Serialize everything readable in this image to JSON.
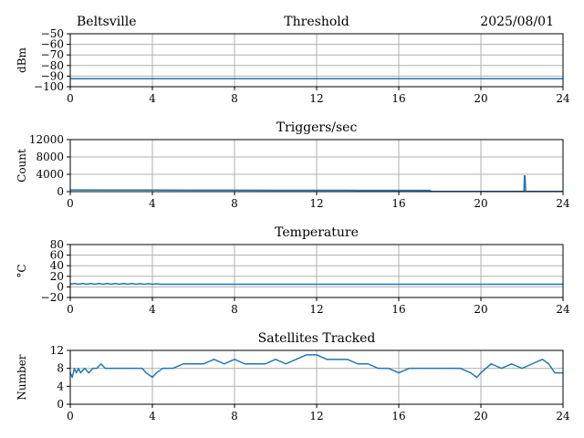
{
  "header": {
    "station": "Beltsville",
    "date": "2025/08/01"
  },
  "colors": {
    "series": "#1f77b4"
  },
  "chart_data": [
    {
      "type": "line",
      "title": "Threshold",
      "ylabel": "dBm",
      "xlim": [
        0,
        24
      ],
      "ylim": [
        -100,
        -50
      ],
      "xticks": [
        "0",
        "4",
        "8",
        "12",
        "16",
        "20",
        "24"
      ],
      "yticks": [
        "−50",
        "−60",
        "−70",
        "−80",
        "−90",
        "−100"
      ],
      "grid": true,
      "series": [
        {
          "x": [
            0,
            24
          ],
          "y": [
            -92.5,
            -92.5
          ]
        }
      ]
    },
    {
      "type": "line",
      "title": "Triggers/sec",
      "ylabel": "Count",
      "xlim": [
        0,
        24
      ],
      "ylim": [
        0,
        12000
      ],
      "xticks": [
        "0",
        "4",
        "8",
        "12",
        "16",
        "20",
        "24"
      ],
      "yticks": [
        "12000",
        "8000",
        "4000",
        "0"
      ],
      "grid": true,
      "series": [
        {
          "x": [
            0,
            2,
            4,
            6,
            8,
            10,
            12,
            14,
            16,
            17.5,
            17.6,
            22.1,
            22.12,
            22.15,
            22.18,
            22.2,
            24
          ],
          "y": [
            400,
            380,
            360,
            340,
            330,
            320,
            310,
            300,
            290,
            280,
            50,
            50,
            3600,
            3600,
            50,
            50,
            50
          ]
        }
      ]
    },
    {
      "type": "line",
      "title": "Temperature",
      "ylabel": "°C",
      "xlim": [
        0,
        24
      ],
      "ylim": [
        -20,
        80
      ],
      "xticks": [
        "0",
        "4",
        "8",
        "12",
        "16",
        "20",
        "24"
      ],
      "yticks": [
        "80",
        "60",
        "40",
        "20",
        "0",
        "−20"
      ],
      "grid": true,
      "series": [
        {
          "x": [
            0,
            0.2,
            0.4,
            0.6,
            0.8,
            1,
            1.2,
            1.4,
            1.6,
            1.8,
            2,
            2.2,
            2.4,
            2.6,
            2.8,
            3,
            3.2,
            3.4,
            3.6,
            3.8,
            4,
            4.2,
            4.4,
            4.5,
            24
          ],
          "y": [
            5,
            6.5,
            5,
            6.5,
            5,
            6.5,
            5,
            6.5,
            5,
            6.5,
            5,
            6.5,
            5,
            6.5,
            5,
            6.5,
            5,
            6,
            5,
            6,
            5,
            5.8,
            5,
            5,
            5
          ]
        }
      ]
    },
    {
      "type": "line",
      "title": "Satellites Tracked",
      "ylabel": "Number",
      "xlim": [
        0,
        24
      ],
      "ylim": [
        0,
        12
      ],
      "xticks": [
        "0",
        "4",
        "8",
        "12",
        "16",
        "20",
        "24"
      ],
      "yticks": [
        "12",
        "8",
        "4",
        "0"
      ],
      "grid": true,
      "series": [
        {
          "x": [
            0,
            0.1,
            0.2,
            0.3,
            0.4,
            0.5,
            0.7,
            0.9,
            1.1,
            1.3,
            1.5,
            1.7,
            2.0,
            2.5,
            3.0,
            3.5,
            3.7,
            4.0,
            4.2,
            4.5,
            5.0,
            5.5,
            6.0,
            6.5,
            7.0,
            7.5,
            8.0,
            8.5,
            9.0,
            9.5,
            10.0,
            10.5,
            11.0,
            11.5,
            12.0,
            12.5,
            13.0,
            13.5,
            14.0,
            14.5,
            15.0,
            15.5,
            16.0,
            16.5,
            17.0,
            17.5,
            18.0,
            18.5,
            19.0,
            19.5,
            19.8,
            20.0,
            20.5,
            21.0,
            21.5,
            22.0,
            22.5,
            23.0,
            23.3,
            23.6,
            24
          ],
          "y": [
            7,
            6,
            8,
            7,
            8,
            7,
            8,
            7,
            8,
            8,
            9,
            8,
            8,
            8,
            8,
            8,
            7,
            6,
            7,
            8,
            8,
            9,
            9,
            9,
            10,
            9,
            10,
            9,
            9,
            9,
            10,
            9,
            10,
            11,
            11,
            10,
            10,
            10,
            9,
            9,
            8,
            8,
            7,
            8,
            8,
            8,
            8,
            8,
            8,
            7,
            6,
            7,
            9,
            8,
            9,
            8,
            9,
            10,
            9,
            7,
            7
          ]
        }
      ]
    }
  ]
}
